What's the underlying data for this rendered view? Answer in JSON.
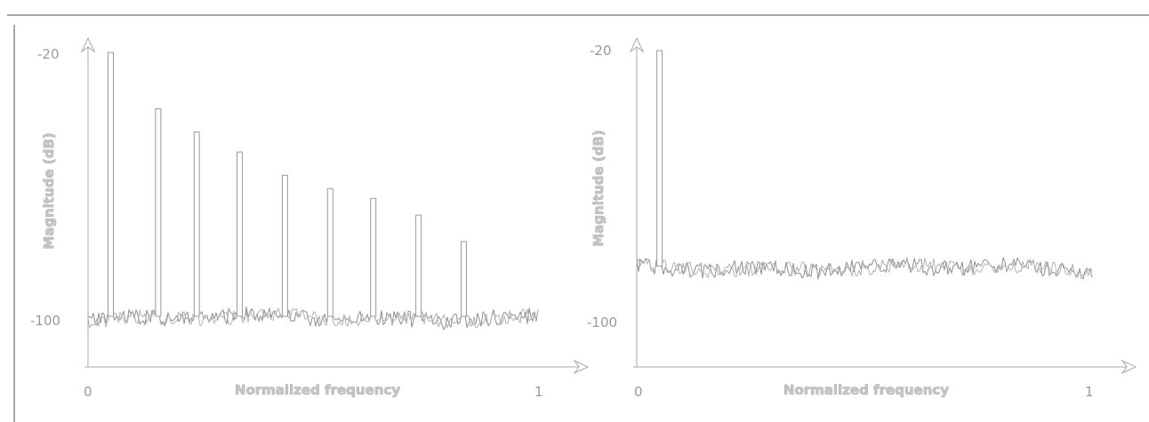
{
  "chart_data": [
    {
      "type": "line",
      "title": "",
      "xlabel": "Normalized frequency",
      "ylabel": "Magnitude (dB)",
      "xlim": [
        0,
        1
      ],
      "ylim": [
        -100,
        -20
      ],
      "x_ticks": [
        "0",
        "1"
      ],
      "y_ticks": [
        "-20",
        "-100"
      ],
      "noise_floor_db": -100,
      "harmonic_spikes": [
        {
          "x": 0.05,
          "y": -20
        },
        {
          "x": 0.155,
          "y": -37
        },
        {
          "x": 0.24,
          "y": -44
        },
        {
          "x": 0.335,
          "y": -50
        },
        {
          "x": 0.435,
          "y": -57
        },
        {
          "x": 0.535,
          "y": -61
        },
        {
          "x": 0.63,
          "y": -64
        },
        {
          "x": 0.73,
          "y": -69
        },
        {
          "x": 0.83,
          "y": -77
        }
      ]
    },
    {
      "type": "line",
      "title": "",
      "xlabel": "Normalized frequency",
      "ylabel": "Magnitude (dB)",
      "xlim": [
        0,
        1
      ],
      "ylim": [
        -100,
        -20
      ],
      "x_ticks": [
        "0",
        "1"
      ],
      "y_ticks": [
        "-20",
        "-100"
      ],
      "noise_floor_db": -85,
      "harmonic_spikes": [
        {
          "x": 0.05,
          "y": -20
        }
      ]
    }
  ]
}
